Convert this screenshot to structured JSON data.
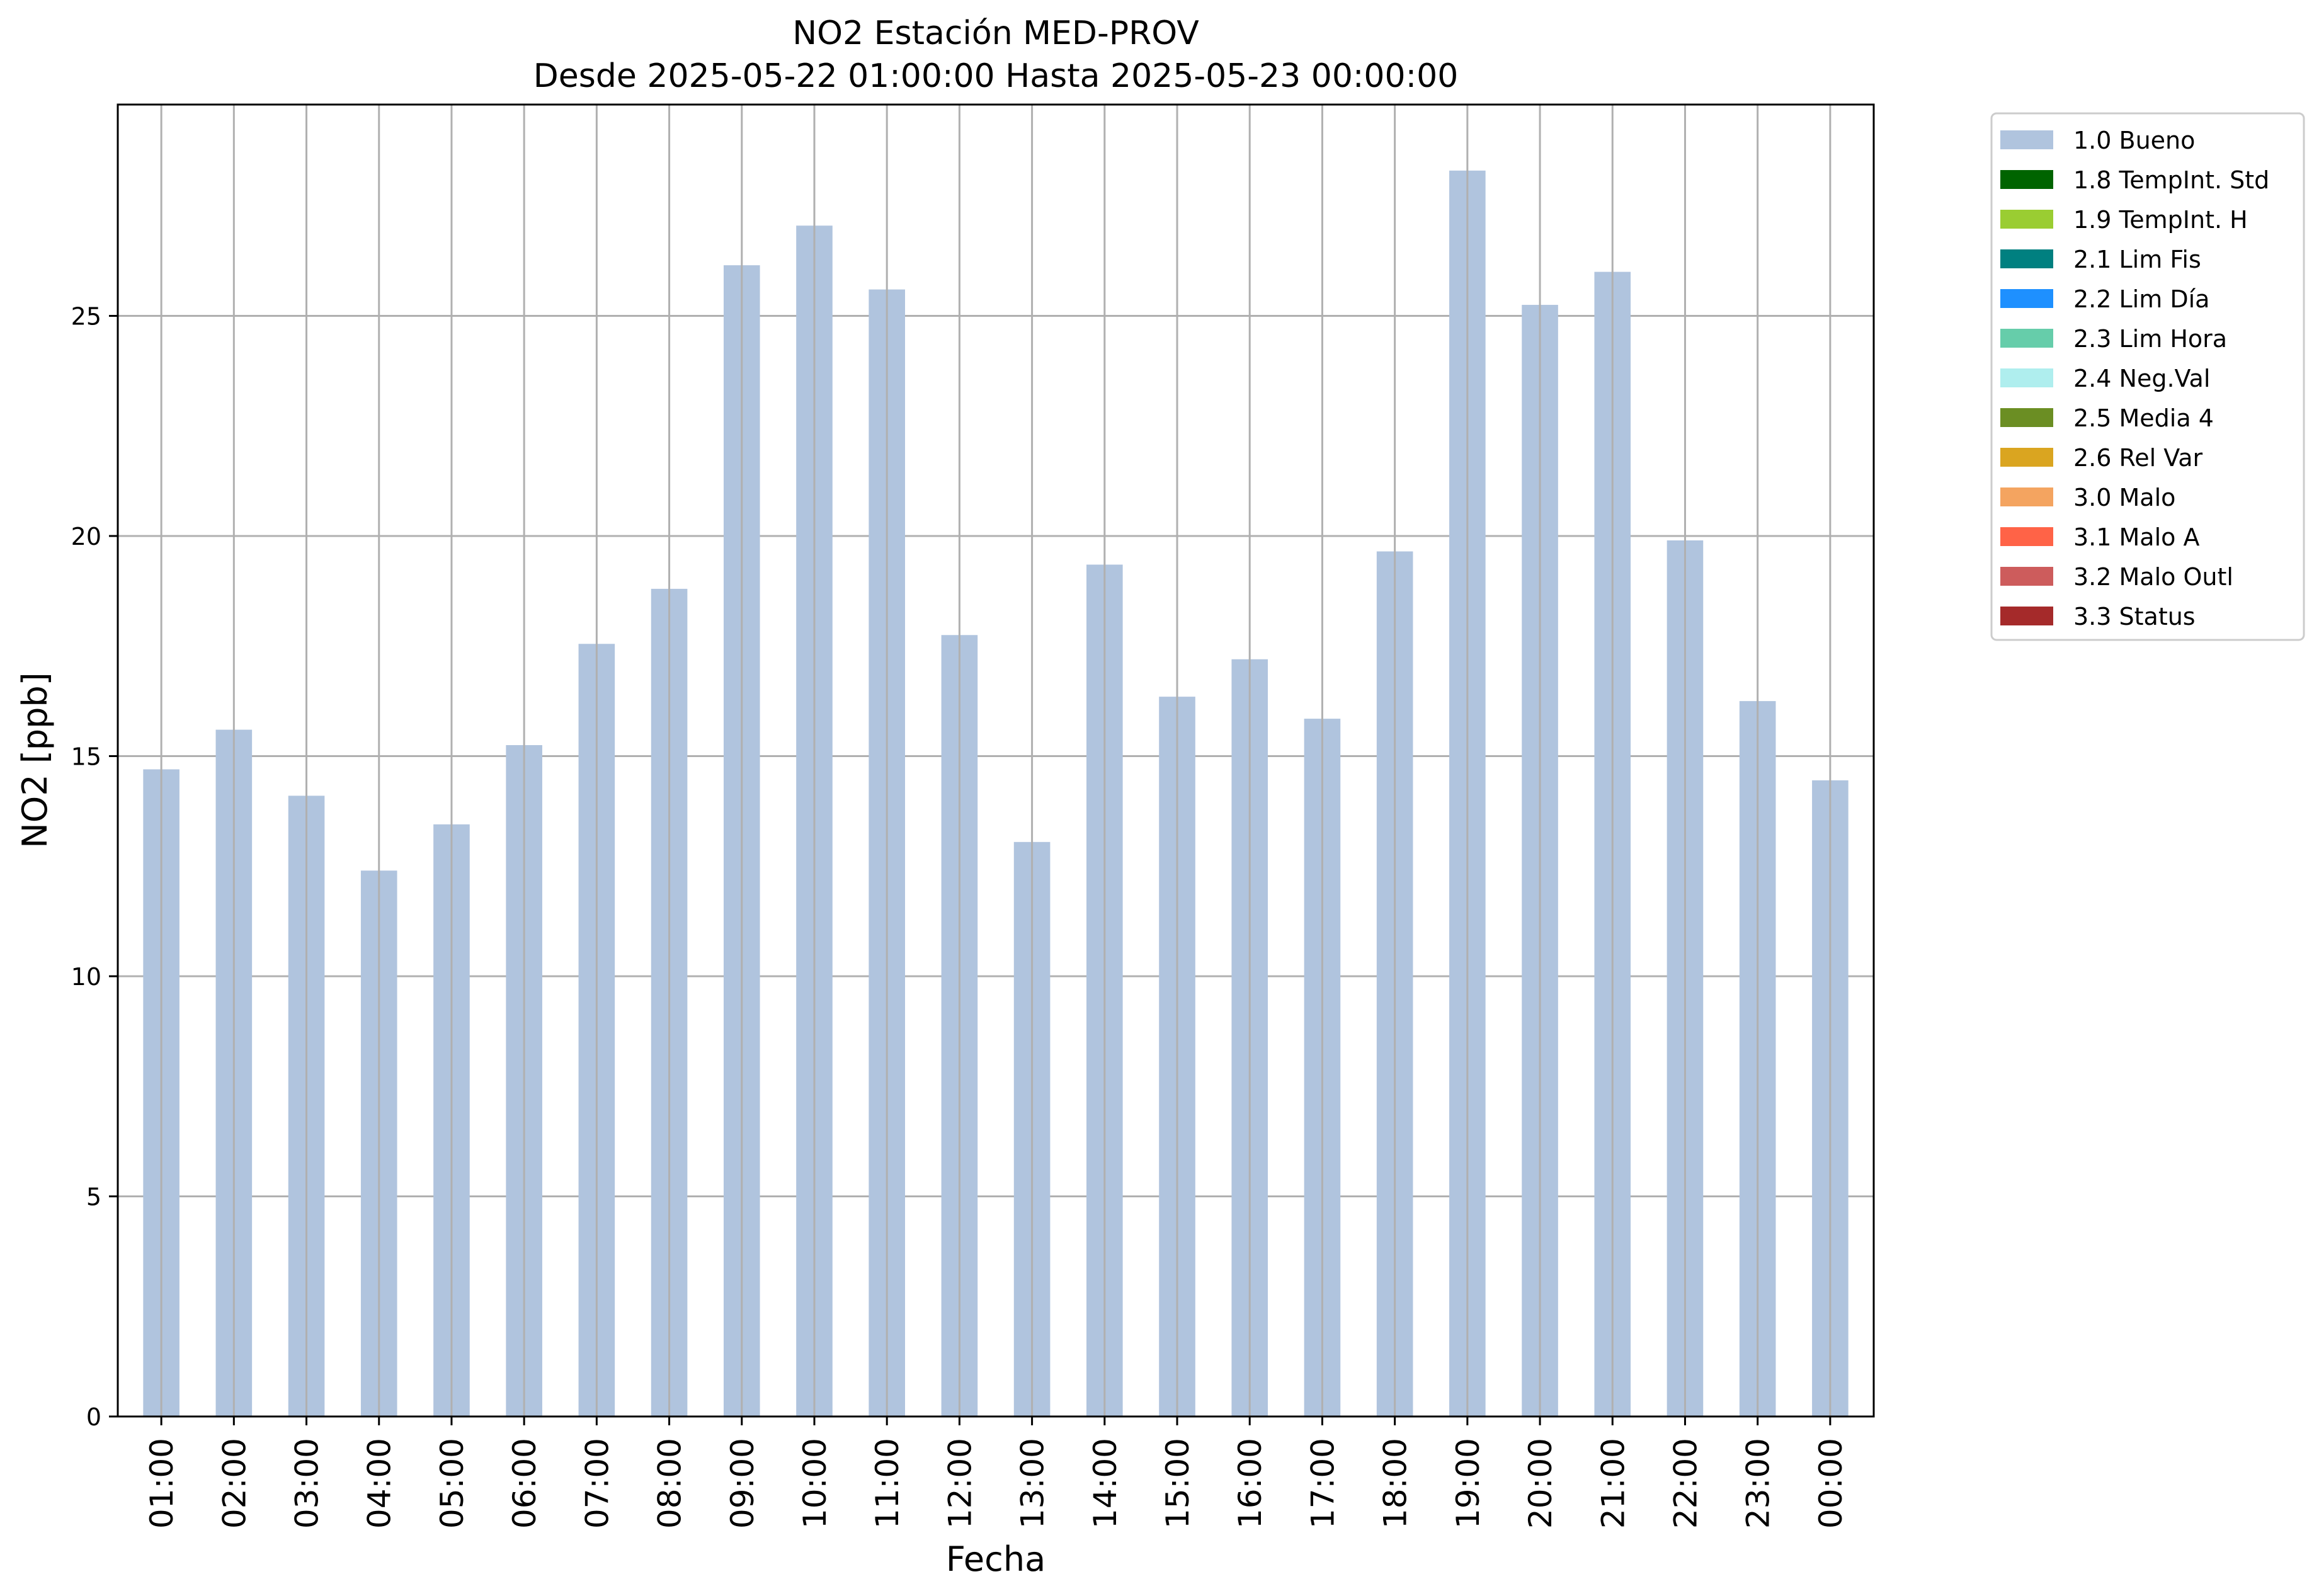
{
  "chart_data": {
    "type": "bar",
    "title": "NO2 Estación MED-PROV",
    "subtitle": "Desde 2025-05-22 01:00:00 Hasta 2025-05-23 00:00:00",
    "xlabel": "Fecha",
    "ylabel": "NO2 [ppb]",
    "ylim": [
      0,
      29.8
    ],
    "yticks": [
      0,
      5,
      10,
      15,
      20,
      25
    ],
    "grid": true,
    "legend_position": "outside-top-right",
    "categories": [
      "01:00",
      "02:00",
      "03:00",
      "04:00",
      "05:00",
      "06:00",
      "07:00",
      "08:00",
      "09:00",
      "10:00",
      "11:00",
      "12:00",
      "13:00",
      "14:00",
      "15:00",
      "16:00",
      "17:00",
      "18:00",
      "19:00",
      "20:00",
      "21:00",
      "22:00",
      "23:00",
      "00:00"
    ],
    "series": [
      {
        "name": "1.0 Bueno",
        "color": "#b0c4de",
        "values": [
          14.7,
          15.6,
          14.1,
          12.4,
          13.45,
          15.25,
          17.55,
          18.8,
          26.15,
          27.05,
          25.6,
          17.75,
          13.05,
          19.35,
          16.35,
          17.2,
          15.85,
          19.65,
          28.3,
          25.25,
          26.0,
          19.9,
          16.25,
          14.45
        ]
      }
    ],
    "legend": [
      {
        "label": "1.0 Bueno",
        "color": "#b0c4de"
      },
      {
        "label": "1.8 TempInt. Std",
        "color": "#006400"
      },
      {
        "label": "1.9 TempInt. H",
        "color": "#9acd32"
      },
      {
        "label": "2.1 Lim Fis",
        "color": "#008080"
      },
      {
        "label": "2.2 Lim Día",
        "color": "#1e90ff"
      },
      {
        "label": "2.3 Lim Hora",
        "color": "#66cdaa"
      },
      {
        "label": "2.4 Neg.Val",
        "color": "#afeeee"
      },
      {
        "label": "2.5 Media 4",
        "color": "#6b8e23"
      },
      {
        "label": "2.6 Rel Var",
        "color": "#daa520"
      },
      {
        "label": "3.0 Malo",
        "color": "#f4a460"
      },
      {
        "label": "3.1 Malo A",
        "color": "#ff6347"
      },
      {
        "label": "3.2 Malo Outl",
        "color": "#cd5c5c"
      },
      {
        "label": "3.3 Status",
        "color": "#a52a2a"
      }
    ]
  },
  "colors": {
    "grid": "#b0b0b0",
    "axis": "#000000",
    "legend_border": "#cccccc"
  }
}
